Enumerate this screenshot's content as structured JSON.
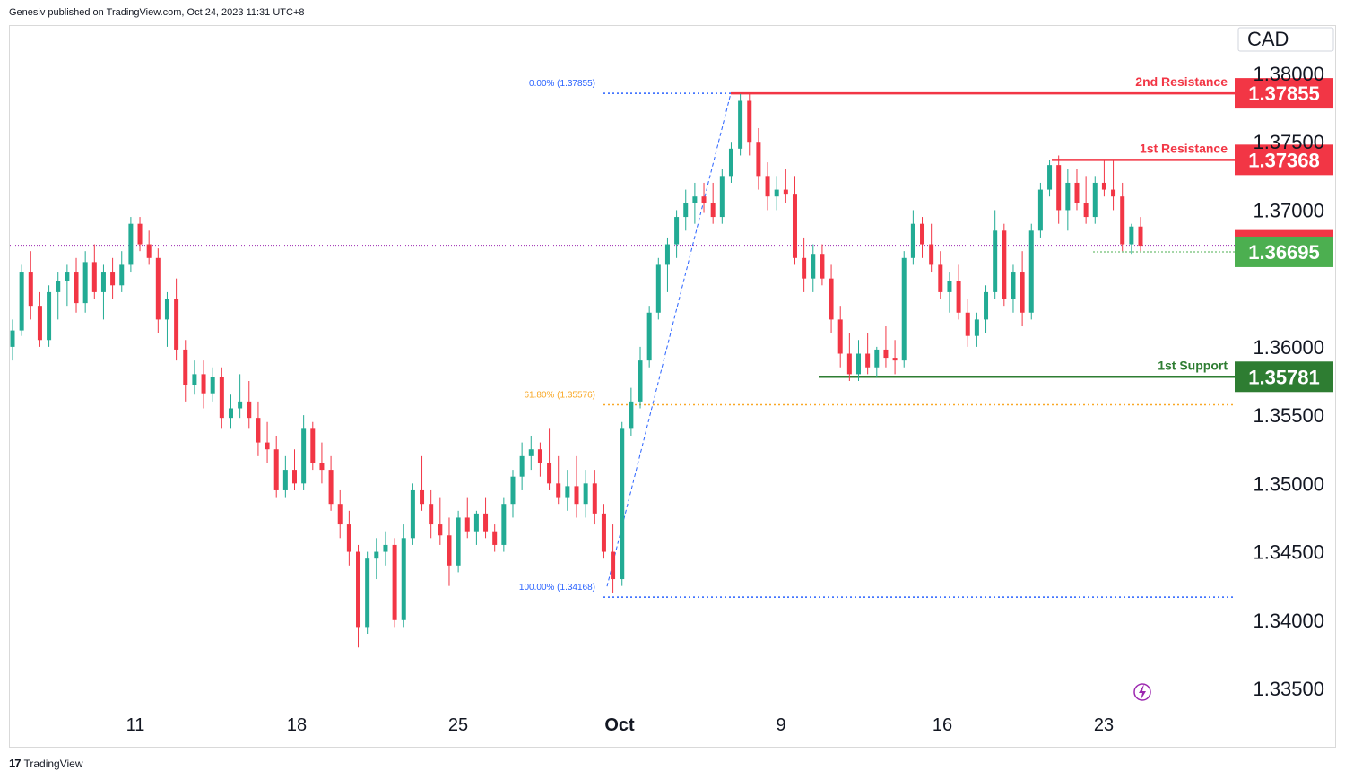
{
  "header": {
    "published": "Genesiv published on TradingView.com, Oct 24, 2023 11:31 UTC+8"
  },
  "footer": {
    "brand": "TradingView"
  },
  "chart_data": {
    "type": "candlestick",
    "currency": "CAD",
    "ylim": [
      1.335,
      1.3825
    ],
    "y_ticks": [
      "1.38000",
      "1.37500",
      "1.37000",
      "1.36000",
      "1.35500",
      "1.35000",
      "1.34500",
      "1.34000",
      "1.33500"
    ],
    "x_ticks": [
      "11",
      "18",
      "25",
      "Oct",
      "9",
      "16",
      "23"
    ],
    "levels": [
      {
        "name": "2nd Resistance",
        "value": "1.37855",
        "color": "#f23645",
        "type": "resistance"
      },
      {
        "name": "1st Resistance",
        "value": "1.37368",
        "color": "#f23645",
        "type": "resistance"
      },
      {
        "name": "",
        "value": "1.36743",
        "color": "#f23645",
        "type": "last-price"
      },
      {
        "name": "",
        "value": "1.36695",
        "color": "#4caf50",
        "type": "price"
      },
      {
        "name": "1st Support",
        "value": "1.35781",
        "color": "#2e7d32",
        "type": "support"
      }
    ],
    "fibonacci": [
      {
        "label": "0.00% (1.37855)",
        "value": 1.37855,
        "color": "#2962ff"
      },
      {
        "label": "61.80% (1.35576)",
        "value": 1.35576,
        "color": "#f9a825"
      },
      {
        "label": "100.00% (1.34168)",
        "value": 1.34168,
        "color": "#2962ff"
      }
    ],
    "colors": {
      "up": "#22ab94",
      "down": "#f23645",
      "support": "#388e3c",
      "resistance": "#f23645",
      "lastprice_line": "#9c27b0"
    },
    "candles": [
      [
        1.36,
        1.362,
        1.359,
        1.3612
      ],
      [
        1.3612,
        1.366,
        1.3608,
        1.3655
      ],
      [
        1.3655,
        1.367,
        1.362,
        1.363
      ],
      [
        1.363,
        1.364,
        1.36,
        1.3605
      ],
      [
        1.3605,
        1.3645,
        1.36,
        1.364
      ],
      [
        1.364,
        1.3655,
        1.362,
        1.3648
      ],
      [
        1.3648,
        1.366,
        1.363,
        1.3655
      ],
      [
        1.3655,
        1.3665,
        1.3625,
        1.3632
      ],
      [
        1.3632,
        1.367,
        1.3625,
        1.3662
      ],
      [
        1.3662,
        1.3675,
        1.3635,
        1.364
      ],
      [
        1.364,
        1.366,
        1.362,
        1.3655
      ],
      [
        1.3655,
        1.3665,
        1.3635,
        1.3645
      ],
      [
        1.3645,
        1.367,
        1.364,
        1.366
      ],
      [
        1.366,
        1.3695,
        1.3655,
        1.369
      ],
      [
        1.369,
        1.3695,
        1.367,
        1.3675
      ],
      [
        1.3675,
        1.3685,
        1.366,
        1.3665
      ],
      [
        1.3665,
        1.3672,
        1.361,
        1.362
      ],
      [
        1.362,
        1.364,
        1.36,
        1.3635
      ],
      [
        1.3635,
        1.365,
        1.359,
        1.3598
      ],
      [
        1.3598,
        1.3605,
        1.356,
        1.3572
      ],
      [
        1.3572,
        1.359,
        1.3565,
        1.358
      ],
      [
        1.358,
        1.359,
        1.3555,
        1.3566
      ],
      [
        1.3566,
        1.3585,
        1.356,
        1.3578
      ],
      [
        1.3578,
        1.3585,
        1.354,
        1.3548
      ],
      [
        1.3548,
        1.3565,
        1.354,
        1.3555
      ],
      [
        1.3555,
        1.358,
        1.3548,
        1.356
      ],
      [
        1.356,
        1.3575,
        1.354,
        1.3548
      ],
      [
        1.3548,
        1.356,
        1.352,
        1.353
      ],
      [
        1.353,
        1.3545,
        1.3515,
        1.3525
      ],
      [
        1.3525,
        1.3535,
        1.349,
        1.3495
      ],
      [
        1.3495,
        1.352,
        1.349,
        1.351
      ],
      [
        1.351,
        1.3525,
        1.3495,
        1.35
      ],
      [
        1.35,
        1.355,
        1.3495,
        1.354
      ],
      [
        1.354,
        1.3545,
        1.351,
        1.3515
      ],
      [
        1.3515,
        1.353,
        1.35,
        1.351
      ],
      [
        1.351,
        1.352,
        1.348,
        1.3485
      ],
      [
        1.3485,
        1.3495,
        1.346,
        1.347
      ],
      [
        1.347,
        1.348,
        1.344,
        1.345
      ],
      [
        1.345,
        1.3455,
        1.338,
        1.3395
      ],
      [
        1.3395,
        1.345,
        1.339,
        1.3445
      ],
      [
        1.3445,
        1.346,
        1.343,
        1.345
      ],
      [
        1.345,
        1.3465,
        1.344,
        1.3455
      ],
      [
        1.3455,
        1.346,
        1.3395,
        1.34
      ],
      [
        1.34,
        1.347,
        1.3395,
        1.346
      ],
      [
        1.346,
        1.35,
        1.3455,
        1.3495
      ],
      [
        1.3495,
        1.352,
        1.348,
        1.3485
      ],
      [
        1.3485,
        1.3495,
        1.346,
        1.347
      ],
      [
        1.347,
        1.349,
        1.3455,
        1.3462
      ],
      [
        1.3462,
        1.3475,
        1.3425,
        1.344
      ],
      [
        1.344,
        1.348,
        1.3435,
        1.3475
      ],
      [
        1.3475,
        1.349,
        1.346,
        1.3465
      ],
      [
        1.3465,
        1.348,
        1.3455,
        1.3478
      ],
      [
        1.3478,
        1.349,
        1.346,
        1.3465
      ],
      [
        1.3465,
        1.347,
        1.345,
        1.3455
      ],
      [
        1.3455,
        1.349,
        1.345,
        1.3485
      ],
      [
        1.3485,
        1.351,
        1.3475,
        1.3505
      ],
      [
        1.3505,
        1.353,
        1.3495,
        1.352
      ],
      [
        1.352,
        1.3535,
        1.351,
        1.3525
      ],
      [
        1.3525,
        1.353,
        1.3505,
        1.3515
      ],
      [
        1.3515,
        1.354,
        1.3495,
        1.35
      ],
      [
        1.35,
        1.352,
        1.3485,
        1.349
      ],
      [
        1.349,
        1.351,
        1.348,
        1.3498
      ],
      [
        1.3498,
        1.352,
        1.3475,
        1.3485
      ],
      [
        1.3485,
        1.351,
        1.3475,
        1.35
      ],
      [
        1.35,
        1.351,
        1.347,
        1.3478
      ],
      [
        1.3478,
        1.3485,
        1.3445,
        1.345
      ],
      [
        1.345,
        1.347,
        1.342,
        1.343
      ],
      [
        1.343,
        1.3545,
        1.3425,
        1.354
      ],
      [
        1.354,
        1.357,
        1.3535,
        1.356
      ],
      [
        1.356,
        1.36,
        1.3555,
        1.359
      ],
      [
        1.359,
        1.363,
        1.3585,
        1.3625
      ],
      [
        1.3625,
        1.3665,
        1.362,
        1.366
      ],
      [
        1.366,
        1.368,
        1.364,
        1.3675
      ],
      [
        1.3675,
        1.37,
        1.3665,
        1.3695
      ],
      [
        1.3695,
        1.3715,
        1.3685,
        1.3705
      ],
      [
        1.3705,
        1.372,
        1.369,
        1.371
      ],
      [
        1.371,
        1.372,
        1.3698,
        1.3705
      ],
      [
        1.3705,
        1.372,
        1.369,
        1.3695
      ],
      [
        1.3695,
        1.373,
        1.369,
        1.3725
      ],
      [
        1.3725,
        1.375,
        1.372,
        1.3745
      ],
      [
        1.3745,
        1.3785,
        1.374,
        1.378
      ],
      [
        1.378,
        1.3785,
        1.374,
        1.375
      ],
      [
        1.375,
        1.376,
        1.3715,
        1.3725
      ],
      [
        1.3725,
        1.3735,
        1.37,
        1.371
      ],
      [
        1.371,
        1.3725,
        1.37,
        1.3715
      ],
      [
        1.3715,
        1.373,
        1.3705,
        1.3712
      ],
      [
        1.3712,
        1.3725,
        1.366,
        1.3665
      ],
      [
        1.3665,
        1.368,
        1.364,
        1.365
      ],
      [
        1.365,
        1.3675,
        1.364,
        1.3668
      ],
      [
        1.3668,
        1.3675,
        1.3645,
        1.365
      ],
      [
        1.365,
        1.366,
        1.361,
        1.362
      ],
      [
        1.362,
        1.363,
        1.3585,
        1.3595
      ],
      [
        1.3595,
        1.361,
        1.3575,
        1.358
      ],
      [
        1.358,
        1.3605,
        1.3575,
        1.3595
      ],
      [
        1.3595,
        1.361,
        1.358,
        1.3585
      ],
      [
        1.3585,
        1.36,
        1.3578,
        1.3598
      ],
      [
        1.3598,
        1.3615,
        1.3585,
        1.3592
      ],
      [
        1.3592,
        1.3605,
        1.358,
        1.359
      ],
      [
        1.359,
        1.367,
        1.3585,
        1.3665
      ],
      [
        1.3665,
        1.37,
        1.366,
        1.369
      ],
      [
        1.369,
        1.3695,
        1.3665,
        1.3675
      ],
      [
        1.3675,
        1.369,
        1.3655,
        1.366
      ],
      [
        1.366,
        1.367,
        1.3635,
        1.364
      ],
      [
        1.364,
        1.3655,
        1.3625,
        1.3648
      ],
      [
        1.3648,
        1.366,
        1.362,
        1.3625
      ],
      [
        1.3625,
        1.3635,
        1.36,
        1.3608
      ],
      [
        1.3608,
        1.3625,
        1.36,
        1.362
      ],
      [
        1.362,
        1.3645,
        1.361,
        1.364
      ],
      [
        1.364,
        1.37,
        1.3635,
        1.3685
      ],
      [
        1.3685,
        1.369,
        1.363,
        1.3635
      ],
      [
        1.3635,
        1.366,
        1.3625,
        1.3655
      ],
      [
        1.3655,
        1.367,
        1.3615,
        1.3625
      ],
      [
        1.3625,
        1.369,
        1.362,
        1.3685
      ],
      [
        1.3685,
        1.372,
        1.368,
        1.3715
      ],
      [
        1.3715,
        1.3737,
        1.371,
        1.3733
      ],
      [
        1.3733,
        1.374,
        1.369,
        1.37
      ],
      [
        1.37,
        1.373,
        1.3685,
        1.372
      ],
      [
        1.372,
        1.373,
        1.37,
        1.3705
      ],
      [
        1.3705,
        1.3725,
        1.369,
        1.3695
      ],
      [
        1.3695,
        1.3725,
        1.369,
        1.372
      ],
      [
        1.372,
        1.3737,
        1.371,
        1.3715
      ],
      [
        1.3715,
        1.3737,
        1.37,
        1.371
      ],
      [
        1.371,
        1.372,
        1.367,
        1.3675
      ],
      [
        1.3675,
        1.369,
        1.3668,
        1.3688
      ],
      [
        1.3688,
        1.3695,
        1.367,
        1.3674
      ]
    ]
  }
}
